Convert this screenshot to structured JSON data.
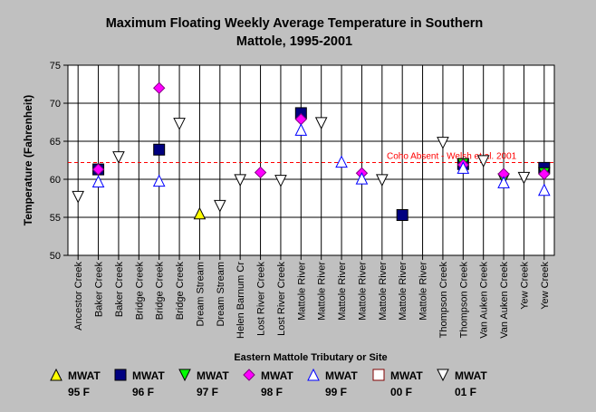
{
  "chart_data": {
    "type": "scatter",
    "title": [
      "Maximum Floating Weekly Average Temperature in Southern",
      "Mattole, 1995-2001"
    ],
    "xlabel": "Eastern Mattole Tributary or Site",
    "ylabel": "Temperature (Fahrenheit)",
    "ylim": [
      50,
      75
    ],
    "yticks": [
      50,
      55,
      60,
      65,
      70,
      75
    ],
    "grid": true,
    "legend_position": "bottom",
    "categories": [
      "Ancestor Creek",
      "Baker Creek",
      "Baker Creek",
      "Bridge Creek",
      "Bridge Creek",
      "Bridge Creek",
      "Dream Stream",
      "Dream Stream",
      "Helen Barnum Cr",
      "Lost River Creek",
      "Lost River Creek",
      "Mattole River",
      "Mattole River",
      "Mattole River",
      "Mattole River",
      "Mattole River",
      "Mattole River",
      "Mattole River",
      "Thompson Creek",
      "Thompson Creek",
      "Van Auken Creek",
      "Van Auken Creek",
      "Yew Creek",
      "Yew Creek"
    ],
    "reference_line": {
      "y": 62.2,
      "label": "Coho Absent - Welsh et al. 2001",
      "color": "#ff0000"
    },
    "series": [
      {
        "name": "MWAT 95 F",
        "label_top": "MWAT",
        "label_bottom": "95 F",
        "marker": "triangle-up",
        "color": "#ffff00",
        "stroke": "#000000",
        "points": [
          {
            "i": 6,
            "y": 55.5
          }
        ]
      },
      {
        "name": "MWAT 96 F",
        "label_top": "MWAT",
        "label_bottom": "96 F",
        "marker": "square",
        "color": "#000080",
        "stroke": "#000000",
        "points": [
          {
            "i": 1,
            "y": 61.3
          },
          {
            "i": 4,
            "y": 63.9
          },
          {
            "i": 11,
            "y": 68.7
          },
          {
            "i": 16,
            "y": 55.3
          },
          {
            "i": 19,
            "y": 62.0
          },
          {
            "i": 23,
            "y": 61.5
          }
        ]
      },
      {
        "name": "MWAT 97 F",
        "label_top": "MWAT",
        "label_bottom": "97 F",
        "marker": "triangle-down",
        "color": "#00ff00",
        "stroke": "#000000",
        "points": [
          {
            "i": 19,
            "y": 62.0
          },
          {
            "i": 21,
            "y": 60.0
          },
          {
            "i": 23,
            "y": 60.8
          }
        ]
      },
      {
        "name": "MWAT 98 F",
        "label_top": "MWAT",
        "label_bottom": "98 F",
        "marker": "diamond",
        "color": "#ff00ff",
        "stroke": "#800080",
        "points": [
          {
            "i": 1,
            "y": 61.3
          },
          {
            "i": 4,
            "y": 72.0
          },
          {
            "i": 9,
            "y": 60.9
          },
          {
            "i": 11,
            "y": 67.9
          },
          {
            "i": 14,
            "y": 60.8
          },
          {
            "i": 19,
            "y": 61.9
          },
          {
            "i": 21,
            "y": 60.7
          },
          {
            "i": 23,
            "y": 60.7
          }
        ]
      },
      {
        "name": "MWAT 99 F",
        "label_top": "MWAT",
        "label_bottom": "99 F",
        "marker": "triangle-up-open",
        "color": "#ffffff",
        "stroke": "#0000ff",
        "points": [
          {
            "i": 1,
            "y": 59.7
          },
          {
            "i": 4,
            "y": 59.8
          },
          {
            "i": 11,
            "y": 66.5
          },
          {
            "i": 13,
            "y": 62.3
          },
          {
            "i": 14,
            "y": 60.1
          },
          {
            "i": 19,
            "y": 61.5
          },
          {
            "i": 21,
            "y": 59.6
          },
          {
            "i": 23,
            "y": 58.6
          }
        ]
      },
      {
        "name": "MWAT 00 F",
        "label_top": "MWAT",
        "label_bottom": "00 F",
        "marker": "square-open",
        "color": "#ffffff",
        "stroke": "#800000",
        "points": []
      },
      {
        "name": "MWAT 01 F",
        "label_top": "MWAT",
        "label_bottom": "01 F",
        "marker": "triangle-down-open",
        "color": "#ffffff",
        "stroke": "#000000",
        "points": [
          {
            "i": 0,
            "y": 57.7
          },
          {
            "i": 2,
            "y": 62.9
          },
          {
            "i": 5,
            "y": 67.3
          },
          {
            "i": 7,
            "y": 56.5
          },
          {
            "i": 8,
            "y": 59.9
          },
          {
            "i": 10,
            "y": 59.8
          },
          {
            "i": 12,
            "y": 67.4
          },
          {
            "i": 15,
            "y": 59.9
          },
          {
            "i": 18,
            "y": 64.8
          },
          {
            "i": 20,
            "y": 62.4
          },
          {
            "i": 22,
            "y": 60.2
          }
        ]
      }
    ]
  }
}
